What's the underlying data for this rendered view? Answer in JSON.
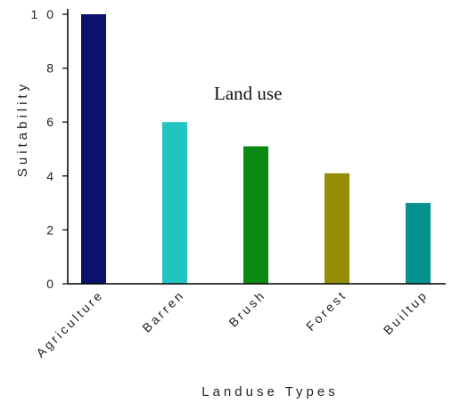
{
  "chart_data": {
    "type": "bar",
    "title": "Land use",
    "xlabel": "Landuse Types",
    "ylabel": "Suitability",
    "categories": [
      "Agriculture",
      "Barren",
      "Brush",
      "Forest",
      "Builtup"
    ],
    "values": [
      10,
      6,
      5.1,
      4.1,
      3
    ],
    "colors": [
      "#0a136b",
      "#22c4c2",
      "#0a8a12",
      "#958e05",
      "#079090"
    ],
    "yticks": [
      0,
      2,
      4,
      6,
      8,
      10
    ],
    "ytick_labels": [
      "0",
      "2",
      "4",
      "6",
      "8",
      "1 0"
    ],
    "ylim": [
      0,
      10
    ],
    "grid": false,
    "legend": "none"
  }
}
